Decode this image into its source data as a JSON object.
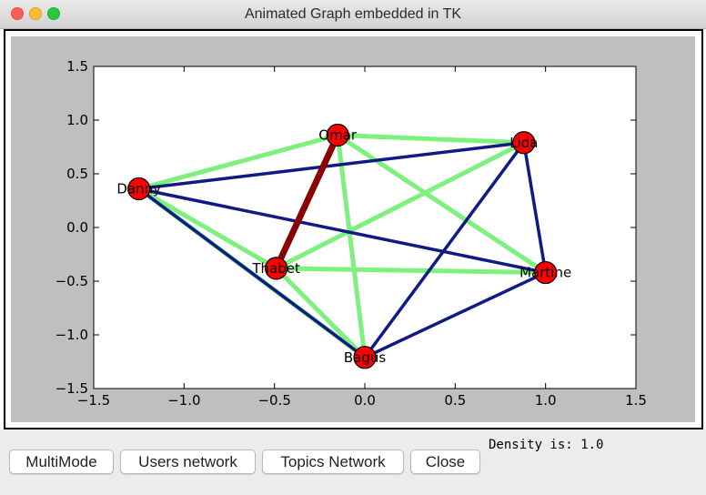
{
  "window": {
    "title": "Animated Graph embedded in TK"
  },
  "buttons": {
    "multimode": "MultiMode",
    "users_network": "Users network",
    "topics_network": "Topics Network",
    "close": "Close"
  },
  "status": {
    "density": "Density is: 1.0"
  },
  "colors": {
    "node_fill": "#ff0000",
    "edge_light_green": "#7ef07e",
    "edge_navy": "#101a86",
    "edge_dark_red": "#8b0000",
    "plot_background": "#bfbfbf"
  },
  "chart_data": {
    "type": "scatter",
    "xlim": [
      -1.5,
      1.5
    ],
    "ylim": [
      -1.5,
      1.5
    ],
    "xticks": [
      "−1.5",
      "−1.0",
      "−0.5",
      "0.0",
      "0.5",
      "1.0",
      "1.5"
    ],
    "yticks": [
      "1.5",
      "1.0",
      "0.5",
      "0.0",
      "−0.5",
      "−1.0",
      "−1.5"
    ],
    "nodes": [
      {
        "name": "Omar",
        "x": -0.15,
        "y": 0.86
      },
      {
        "name": "Lida",
        "x": 0.88,
        "y": 0.79
      },
      {
        "name": "Danny",
        "x": -1.25,
        "y": 0.36
      },
      {
        "name": "Thabet",
        "x": -0.49,
        "y": -0.38
      },
      {
        "name": "Martine",
        "x": 1.0,
        "y": -0.42
      },
      {
        "name": "Bagus",
        "x": 0.0,
        "y": -1.21
      }
    ],
    "edges": [
      {
        "source": "Omar",
        "target": "Lida",
        "kind": "light-green"
      },
      {
        "source": "Omar",
        "target": "Danny",
        "kind": "light-green"
      },
      {
        "source": "Omar",
        "target": "Martine",
        "kind": "light-green"
      },
      {
        "source": "Omar",
        "target": "Bagus",
        "kind": "light-green"
      },
      {
        "source": "Lida",
        "target": "Thabet",
        "kind": "light-green"
      },
      {
        "source": "Danny",
        "target": "Thabet",
        "kind": "light-green"
      },
      {
        "source": "Danny",
        "target": "Bagus",
        "kind": "light-green"
      },
      {
        "source": "Thabet",
        "target": "Martine",
        "kind": "light-green"
      },
      {
        "source": "Thabet",
        "target": "Bagus",
        "kind": "light-green"
      },
      {
        "source": "Danny",
        "target": "Lida",
        "kind": "navy"
      },
      {
        "source": "Danny",
        "target": "Martine",
        "kind": "navy"
      },
      {
        "source": "Danny",
        "target": "Bagus",
        "kind": "navy"
      },
      {
        "source": "Lida",
        "target": "Martine",
        "kind": "navy"
      },
      {
        "source": "Lida",
        "target": "Bagus",
        "kind": "navy"
      },
      {
        "source": "Martine",
        "target": "Bagus",
        "kind": "navy"
      },
      {
        "source": "Omar",
        "target": "Thabet",
        "kind": "dark-red"
      }
    ]
  }
}
